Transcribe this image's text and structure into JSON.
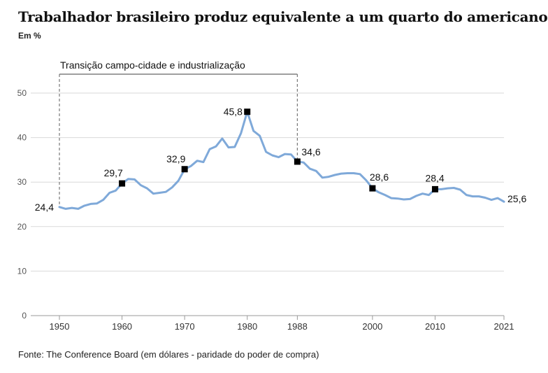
{
  "chart_data": {
    "type": "line",
    "title": "Trabalhador brasileiro produz equivalente a um quarto do americano",
    "subtitle": "Em %",
    "source": "Fonte: The Conference Board (em dólares - paridade do poder de compra)",
    "annotation": "Transição campo-cidade e industrialização",
    "annotation_range": [
      1950,
      1988
    ],
    "xlim": [
      1950,
      2021
    ],
    "ylim": [
      0,
      50
    ],
    "yticks": [
      0,
      10,
      20,
      30,
      40,
      50
    ],
    "xticks": [
      1950,
      1960,
      1970,
      1980,
      1988,
      2000,
      2010,
      2021
    ],
    "series": [
      {
        "color": "#7fa9d9",
        "x": [
          1950,
          1951,
          1952,
          1953,
          1954,
          1955,
          1956,
          1957,
          1958,
          1959,
          1960,
          1961,
          1962,
          1963,
          1964,
          1965,
          1966,
          1967,
          1968,
          1969,
          1970,
          1971,
          1972,
          1973,
          1974,
          1975,
          1976,
          1977,
          1978,
          1979,
          1980,
          1981,
          1982,
          1983,
          1984,
          1985,
          1986,
          1987,
          1988,
          1989,
          1990,
          1991,
          1992,
          1993,
          1994,
          1995,
          1996,
          1997,
          1998,
          1999,
          2000,
          2001,
          2002,
          2003,
          2004,
          2005,
          2006,
          2007,
          2008,
          2009,
          2010,
          2011,
          2012,
          2013,
          2014,
          2015,
          2016,
          2017,
          2018,
          2019,
          2020,
          2021
        ],
        "values": [
          24.4,
          24.0,
          24.2,
          24.0,
          24.7,
          25.1,
          25.2,
          26.0,
          27.6,
          28.1,
          29.7,
          30.7,
          30.6,
          29.3,
          28.6,
          27.4,
          27.6,
          27.8,
          28.8,
          30.3,
          32.9,
          33.6,
          34.8,
          34.5,
          37.4,
          38.0,
          39.8,
          37.8,
          37.9,
          41.0,
          45.8,
          41.5,
          40.4,
          36.8,
          36.0,
          35.6,
          36.3,
          36.2,
          34.6,
          34.4,
          33.0,
          32.5,
          31.0,
          31.2,
          31.6,
          31.9,
          32.0,
          32.0,
          31.8,
          30.4,
          28.6,
          27.7,
          27.1,
          26.4,
          26.3,
          26.1,
          26.2,
          26.9,
          27.4,
          27.1,
          28.4,
          28.4,
          28.6,
          28.7,
          28.3,
          27.1,
          26.8,
          26.8,
          26.5,
          26.0,
          26.4,
          25.6
        ]
      }
    ],
    "markers": [
      {
        "x": 1960,
        "y": 29.7,
        "label": "29,7"
      },
      {
        "x": 1970,
        "y": 32.9,
        "label": "32,9"
      },
      {
        "x": 1980,
        "y": 45.8,
        "label": "45,8"
      },
      {
        "x": 1988,
        "y": 34.6,
        "label": "34,6"
      },
      {
        "x": 2000,
        "y": 28.6,
        "label": "28,6"
      },
      {
        "x": 2010,
        "y": 28.4,
        "label": "28,4"
      }
    ],
    "endpoint_labels": [
      {
        "x": 1950,
        "y": 24.4,
        "label": "24,4"
      },
      {
        "x": 2021,
        "y": 25.6,
        "label": "25,6"
      }
    ],
    "grid": true,
    "legend": "none"
  }
}
